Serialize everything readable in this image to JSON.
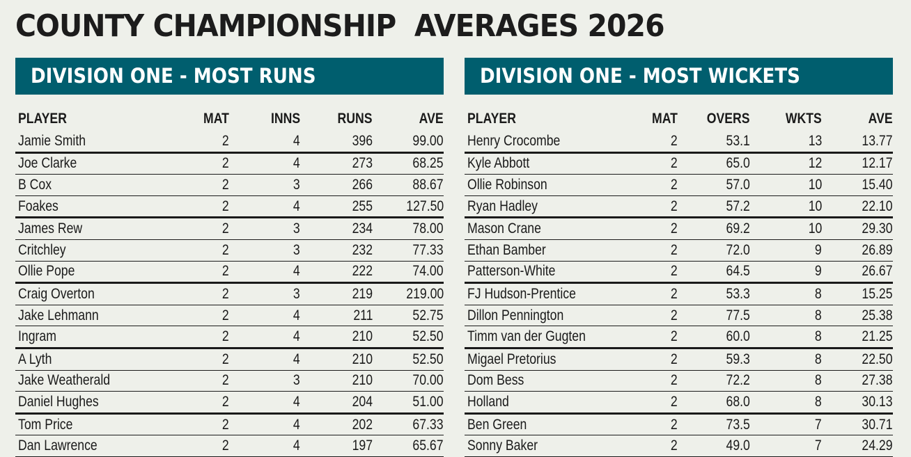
{
  "title": "COUNTY CHAMPIONSHIP  AVERAGES 2026",
  "colors": {
    "banner": "#005e6e",
    "background": "#eef0ea"
  },
  "runs": {
    "heading": "DIVISION ONE - MOST RUNS",
    "columns": [
      "PLAYER",
      "MAT",
      "INNS",
      "RUNS",
      "AVE"
    ],
    "rows": [
      [
        "Jamie Smith",
        "2",
        "4",
        "396",
        "99.00"
      ],
      [
        "Joe Clarke",
        "2",
        "4",
        "273",
        "68.25"
      ],
      [
        "B Cox",
        "2",
        "3",
        "266",
        "88.67"
      ],
      [
        "Foakes",
        "2",
        "4",
        "255",
        "127.50"
      ],
      [
        "James Rew",
        "2",
        "3",
        "234",
        "78.00"
      ],
      [
        "Critchley",
        "2",
        "3",
        "232",
        "77.33"
      ],
      [
        "Ollie Pope",
        "2",
        "4",
        "222",
        "74.00"
      ],
      [
        "Craig Overton",
        "2",
        "3",
        "219",
        "219.00"
      ],
      [
        "Jake Lehmann",
        "2",
        "4",
        "211",
        "52.75"
      ],
      [
        "Ingram",
        "2",
        "4",
        "210",
        "52.50"
      ],
      [
        "A Lyth",
        "2",
        "4",
        "210",
        "52.50"
      ],
      [
        "Jake Weatherald",
        "2",
        "3",
        "210",
        "70.00"
      ],
      [
        "Daniel Hughes",
        "2",
        "4",
        "204",
        "51.00"
      ],
      [
        "Tom Price",
        "2",
        "4",
        "202",
        "67.33"
      ],
      [
        "Dan Lawrence",
        "2",
        "4",
        "197",
        "65.67"
      ]
    ]
  },
  "wickets": {
    "heading": "DIVISION ONE - MOST WICKETS",
    "columns": [
      "PLAYER",
      "MAT",
      "OVERS",
      "WKTS",
      "AVE"
    ],
    "rows": [
      [
        "Henry Crocombe",
        "2",
        "53.1",
        "13",
        "13.77"
      ],
      [
        "Kyle Abbott",
        "2",
        "65.0",
        "12",
        "12.17"
      ],
      [
        "Ollie Robinson",
        "2",
        "57.0",
        "10",
        "15.40"
      ],
      [
        "Ryan Hadley",
        "2",
        "57.2",
        "10",
        "22.10"
      ],
      [
        "Mason Crane",
        "2",
        "69.2",
        "10",
        "29.30"
      ],
      [
        "Ethan Bamber",
        "2",
        "72.0",
        "9",
        "26.89"
      ],
      [
        "Patterson-White",
        "2",
        "64.5",
        "9",
        "26.67"
      ],
      [
        "FJ Hudson-Prentice",
        "2",
        "53.3",
        "8",
        "15.25"
      ],
      [
        "Dillon Pennington",
        "2",
        "77.5",
        "8",
        "25.38"
      ],
      [
        "Timm van der Gugten",
        "2",
        "60.0",
        "8",
        "21.25"
      ],
      [
        "Migael Pretorius",
        "2",
        "59.3",
        "8",
        "22.50"
      ],
      [
        "Dom Bess",
        "2",
        "72.2",
        "8",
        "27.38"
      ],
      [
        "Holland",
        "2",
        "68.0",
        "8",
        "30.13"
      ],
      [
        "Ben Green",
        "2",
        "73.5",
        "7",
        "30.71"
      ],
      [
        "Sonny Baker",
        "2",
        "49.0",
        "7",
        "24.29"
      ]
    ]
  }
}
